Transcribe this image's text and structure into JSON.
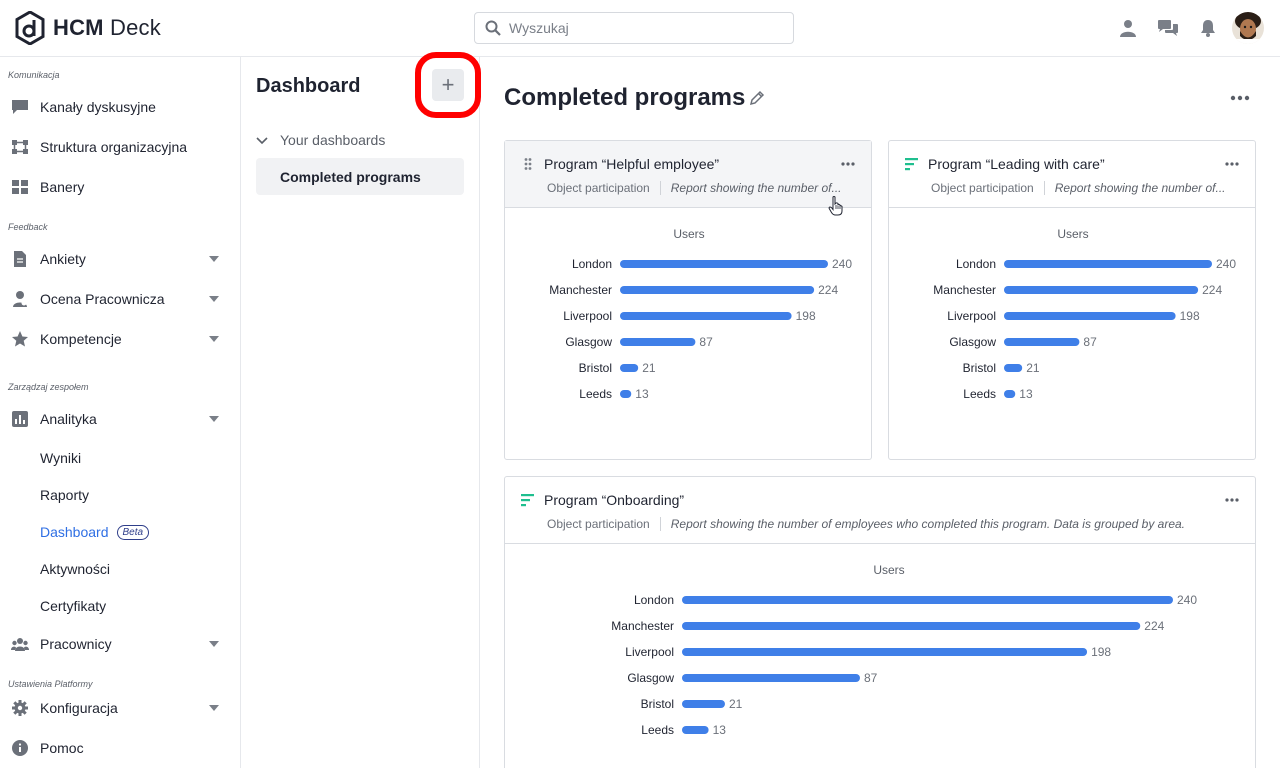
{
  "app": {
    "logo_bold": "HCM",
    "logo_light": " Deck"
  },
  "search": {
    "placeholder": "Wyszukaj"
  },
  "sidebar": {
    "sections": [
      {
        "label": "Komunikacja"
      },
      {
        "label": "Feedback"
      },
      {
        "label": "Zarządzaj zespołem"
      },
      {
        "label": "Ustawienia Platformy"
      }
    ],
    "items": [
      {
        "label": "Kanały dyskusyjne",
        "icon": "chat-bubble-icon"
      },
      {
        "label": "Struktura organizacyjna",
        "icon": "org-structure-icon"
      },
      {
        "label": "Banery",
        "icon": "grid-icon"
      },
      {
        "label": "Ankiety",
        "icon": "document-icon"
      },
      {
        "label": "Ocena Pracownicza",
        "icon": "employee-review-icon"
      },
      {
        "label": "Kompetencje",
        "icon": "star-icon"
      },
      {
        "label": "Analityka",
        "icon": "bar-chart-icon"
      },
      {
        "label": "Pracownicy",
        "icon": "people-icon"
      },
      {
        "label": "Konfiguracja",
        "icon": "gear-icon"
      },
      {
        "label": "Pomoc",
        "icon": "info-icon"
      }
    ],
    "analytics_sub": [
      {
        "label": "Wyniki"
      },
      {
        "label": "Raporty"
      },
      {
        "label": "Dashboard",
        "badge": "Beta",
        "active": true
      },
      {
        "label": "Aktywności"
      },
      {
        "label": "Certyfikaty"
      }
    ]
  },
  "dashboards": {
    "title": "Dashboard",
    "add_label": "+",
    "group_label": "Your dashboards",
    "entries": [
      {
        "label": "Completed programs"
      }
    ]
  },
  "main": {
    "title": "Completed programs"
  },
  "colors": {
    "bar": "#3f7fe8",
    "accent": "#2f6fe4",
    "program_icon": "#1fbf8f"
  },
  "cards": [
    {
      "title": "Program “Helpful employee”",
      "icon": "drag-handle-icon",
      "type_label": "Object participation",
      "description": "Report showing the number of..."
    },
    {
      "title": "Program “Leading with care”",
      "icon": "program-bars-icon",
      "type_label": "Object participation",
      "description": "Report showing the number of..."
    },
    {
      "title": "Program “Onboarding”",
      "icon": "program-bars-icon",
      "type_label": "Object participation",
      "description": "Report showing the number of employees who completed this program. Data is grouped by area."
    }
  ],
  "chart_data": [
    {
      "type": "bar",
      "orientation": "horizontal",
      "title": "Users",
      "categories": [
        "London",
        "Manchester",
        "Liverpool",
        "Glasgow",
        "Bristol",
        "Leeds"
      ],
      "values": [
        240,
        224,
        198,
        87,
        21,
        13
      ],
      "xlim": [
        0,
        240
      ],
      "grid": false
    },
    {
      "type": "bar",
      "orientation": "horizontal",
      "title": "Users",
      "categories": [
        "London",
        "Manchester",
        "Liverpool",
        "Glasgow",
        "Bristol",
        "Leeds"
      ],
      "values": [
        240,
        224,
        198,
        87,
        21,
        13
      ],
      "xlim": [
        0,
        240
      ],
      "grid": false
    },
    {
      "type": "bar",
      "orientation": "horizontal",
      "title": "Users",
      "categories": [
        "London",
        "Manchester",
        "Liverpool",
        "Glasgow",
        "Bristol",
        "Leeds"
      ],
      "values": [
        240,
        224,
        198,
        87,
        21,
        13
      ],
      "xlim": [
        0,
        240
      ],
      "grid": false
    }
  ]
}
